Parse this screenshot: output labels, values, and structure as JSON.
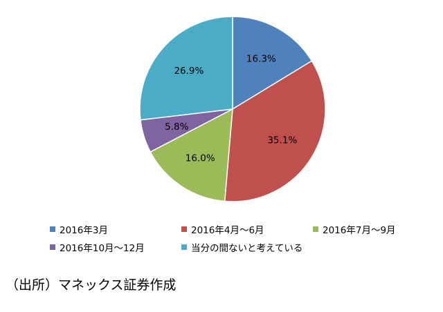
{
  "chart_data": {
    "type": "pie",
    "categories": [
      "2016年3月",
      "2016年4月～6月",
      "2016年7月～9月",
      "2016年10月～12月",
      "当分の間ないと考えている"
    ],
    "values": [
      16.3,
      35.1,
      16.0,
      5.8,
      26.9
    ],
    "value_labels": [
      "16.3%",
      "35.1%",
      "16.0%",
      "5.8%",
      "26.9%"
    ],
    "colors": [
      "#4F81BD",
      "#C0504D",
      "#9BBB59",
      "#8064A2",
      "#4BACC6"
    ],
    "legend_position": "bottom",
    "start": "12 o'clock, clockwise"
  },
  "source_note": "（出所）マネックス証券作成"
}
